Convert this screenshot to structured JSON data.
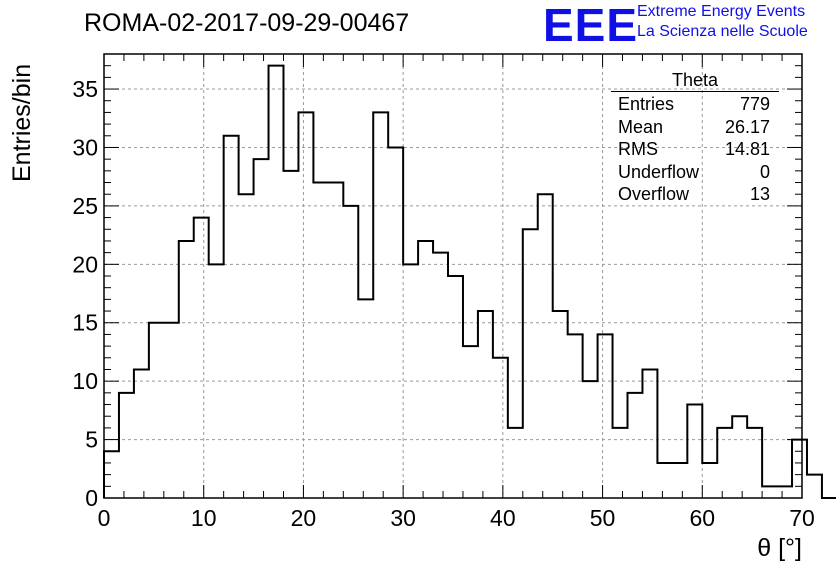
{
  "chart_data": {
    "type": "histogram",
    "title": "ROMA-02-2017-09-29-00467",
    "xlabel": "θ [°]",
    "ylabel": "Entries/bin",
    "xlim": [
      0,
      70
    ],
    "ylim": [
      0,
      38
    ],
    "bin_width": 1.5,
    "bin_start": 0,
    "values": [
      4,
      9,
      11,
      15,
      15,
      22,
      24,
      20,
      31,
      26,
      29,
      37,
      28,
      33,
      27,
      27,
      25,
      17,
      33,
      30,
      20,
      22,
      21,
      19,
      13,
      16,
      12,
      6,
      23,
      26,
      16,
      14,
      10,
      14,
      6,
      9,
      11,
      3,
      3,
      8,
      3,
      6,
      7,
      6,
      1,
      1,
      5,
      2,
      0
    ],
    "x_ticks": [
      "0",
      "10",
      "20",
      "30",
      "40",
      "50",
      "60",
      "70"
    ],
    "y_ticks": [
      "0",
      "5",
      "10",
      "15",
      "20",
      "25",
      "30",
      "35"
    ],
    "grid": true,
    "stats_box": {
      "name": "Theta",
      "rows": [
        {
          "label": "Entries",
          "value": "779"
        },
        {
          "label": "Mean",
          "value": "26.17"
        },
        {
          "label": "RMS",
          "value": "14.81"
        },
        {
          "label": "Underflow",
          "value": "0"
        },
        {
          "label": "Overflow",
          "value": "13"
        }
      ]
    }
  },
  "logo": {
    "mark": "EEE",
    "line1": "Extreme Energy Events",
    "line2": "La Scienza nelle Scuole",
    "color": "#1010e6"
  }
}
